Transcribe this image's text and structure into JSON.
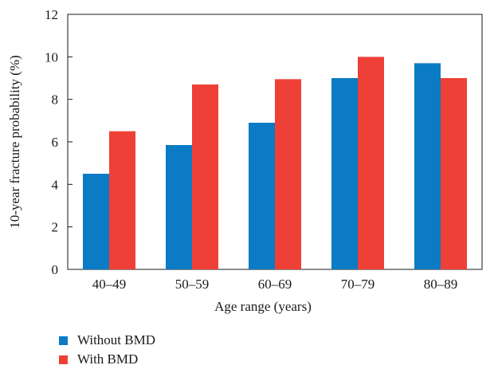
{
  "chart_data": {
    "type": "bar",
    "categories": [
      "40–49",
      "50–59",
      "60–69",
      "70–79",
      "80–89"
    ],
    "series": [
      {
        "name": "Without BMD",
        "color": "#0a7bc4",
        "values": [
          4.5,
          5.85,
          6.9,
          9.0,
          9.7
        ]
      },
      {
        "name": "With BMD",
        "color": "#ee4037",
        "values": [
          6.5,
          8.7,
          8.95,
          10.0,
          9.0
        ]
      }
    ],
    "xlabel": "Age range (years)",
    "ylabel": "10-year fracture probability (%)",
    "ylim": [
      0,
      12
    ],
    "yticks": [
      0,
      2,
      4,
      6,
      8,
      10,
      12
    ],
    "grid": false,
    "legend_position": "bottom-left"
  }
}
